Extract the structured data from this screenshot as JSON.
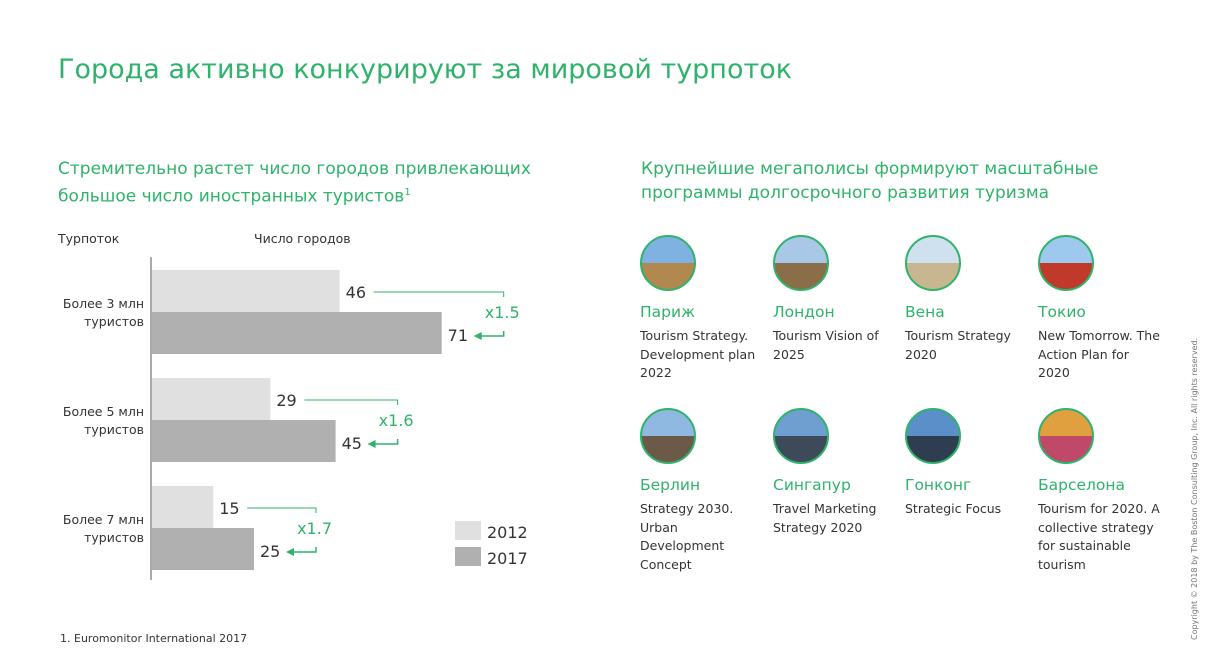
{
  "title": "Города активно конкурируют за мировой турпоток",
  "left": {
    "subtitle_line1": "Стремительно растет число городов привлекающих",
    "subtitle_line2": "большое число иностранных туристов",
    "footnote_mark": "1"
  },
  "right": {
    "subtitle_line1": "Крупнейшие мегаполисы формируют масштабные",
    "subtitle_line2": "программы долгосрочного развития туризма"
  },
  "chart_data": {
    "type": "bar",
    "orientation": "horizontal",
    "row_header": "Турпоток",
    "value_header": "Число городов",
    "categories": [
      "Более 3 млн туристов",
      "Более 5 млн туристов",
      "Более 7 млн туристов"
    ],
    "category_lines": [
      [
        "Более 3 млн",
        "туристов"
      ],
      [
        "Более 5 млн",
        "туристов"
      ],
      [
        "Более 7 млн",
        "туристов"
      ]
    ],
    "series": [
      {
        "name": "2012",
        "values": [
          46,
          29,
          15
        ],
        "color": "#e0e0e0"
      },
      {
        "name": "2017",
        "values": [
          71,
          45,
          25
        ],
        "color": "#b0b0b0"
      }
    ],
    "growth_labels": [
      "x1.5",
      "x1.6",
      "x1.7"
    ],
    "legend": "bottom-right",
    "xlim": [
      0,
      75
    ]
  },
  "cities": [
    {
      "name": "Париж",
      "desc": "Tourism Strategy. Development plan 2022",
      "colors": [
        "#7fb2e0",
        "#b08850"
      ]
    },
    {
      "name": "Лондон",
      "desc": "Tourism Vision of 2025",
      "colors": [
        "#a9c8e8",
        "#8a6e48"
      ]
    },
    {
      "name": "Вена",
      "desc": "Tourism Strategy 2020",
      "colors": [
        "#cfe0ef",
        "#c8b690"
      ]
    },
    {
      "name": "Токио",
      "desc": "New Tomorrow. The Action Plan for 2020",
      "colors": [
        "#9ec9ee",
        "#c0392b"
      ]
    },
    {
      "name": "Берлин",
      "desc": "Strategy 2030. Urban Development Concept",
      "colors": [
        "#8fb9e0",
        "#6b5a48"
      ]
    },
    {
      "name": "Сингапур",
      "desc": "Travel Marketing Strategy 2020",
      "colors": [
        "#6e9fd0",
        "#3c4a5a"
      ]
    },
    {
      "name": "Гонконг",
      "desc": "Strategic Focus",
      "colors": [
        "#5b8fc9",
        "#2e3e50"
      ]
    },
    {
      "name": "Барселона",
      "desc": "Tourism for 2020. A collective strategy for sustainable tourism",
      "colors": [
        "#e0a040",
        "#c04868"
      ]
    }
  ],
  "footnote": "1.   Euromonitor International 2017",
  "copyright": "Copyright © 2018 by The Boston Consulting Group, Inc. All rights reserved.",
  "accent": "#2fb36b"
}
